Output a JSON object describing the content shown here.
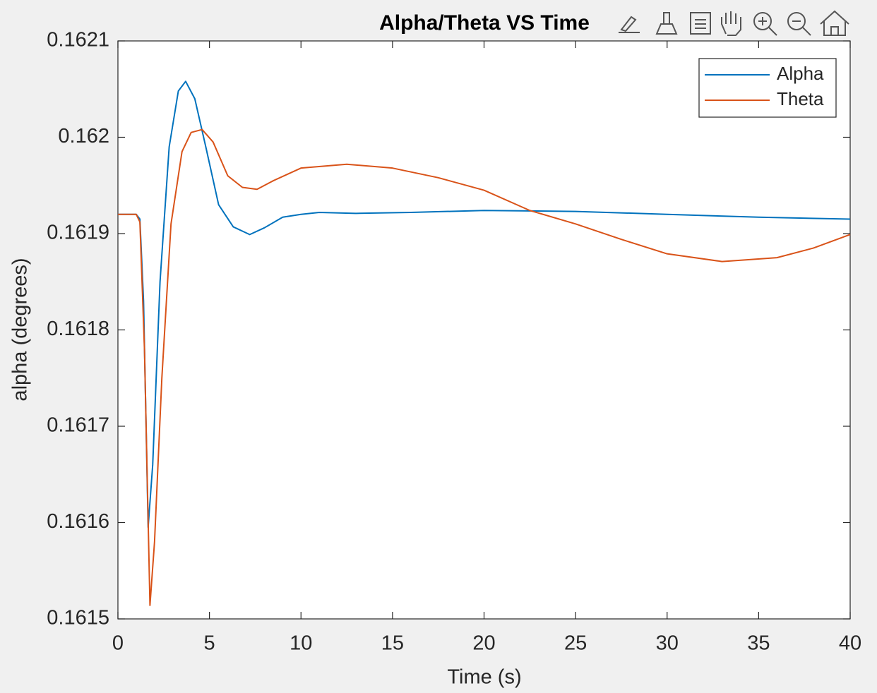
{
  "chart_data": {
    "type": "line",
    "title": "Alpha/Theta VS Time",
    "x_label": "Time (s)",
    "y_label": "alpha (degrees)",
    "xlim": [
      0,
      40
    ],
    "xticks": [
      0,
      5,
      10,
      15,
      20,
      25,
      30,
      35,
      40
    ],
    "ylim": [
      0.1615,
      0.1621
    ],
    "yticks": [
      0.1615,
      0.1616,
      0.1617,
      0.1618,
      0.1619,
      0.162,
      0.1621
    ],
    "grid": false,
    "legend_position": "upper-right",
    "series": [
      {
        "name": "Alpha",
        "color": "#0072BD",
        "x": [
          0,
          1,
          1.2,
          1.4,
          1.65,
          1.9,
          2.3,
          2.8,
          3.3,
          3.7,
          4.2,
          4.8,
          5.5,
          6.3,
          7.2,
          8,
          9,
          10,
          11,
          13,
          16,
          20,
          25,
          30,
          35,
          40
        ],
        "values": [
          0.16192,
          0.16192,
          0.161915,
          0.16183,
          0.161595,
          0.16166,
          0.16185,
          0.16199,
          0.162048,
          0.162058,
          0.16204,
          0.16199,
          0.16193,
          0.161907,
          0.161899,
          0.161906,
          0.161917,
          0.16192,
          0.161922,
          0.161921,
          0.161922,
          0.161924,
          0.161923,
          0.16192,
          0.161917,
          0.161915
        ]
      },
      {
        "name": "Theta",
        "color": "#D95319",
        "x": [
          0,
          1,
          1.2,
          1.45,
          1.75,
          2.0,
          2.4,
          2.9,
          3.5,
          4.0,
          4.6,
          5.2,
          6,
          6.8,
          7.6,
          8.5,
          10,
          12.5,
          15,
          17.5,
          20,
          22.5,
          25,
          27.5,
          30,
          33,
          36,
          38,
          40
        ],
        "values": [
          0.16192,
          0.16192,
          0.161912,
          0.16178,
          0.161514,
          0.16158,
          0.16175,
          0.16191,
          0.161985,
          0.162005,
          0.162008,
          0.161995,
          0.16196,
          0.161948,
          0.161946,
          0.161955,
          0.161968,
          0.161972,
          0.161968,
          0.161958,
          0.161945,
          0.161924,
          0.16191,
          0.161894,
          0.161879,
          0.161871,
          0.161875,
          0.161885,
          0.161899
        ]
      }
    ]
  }
}
